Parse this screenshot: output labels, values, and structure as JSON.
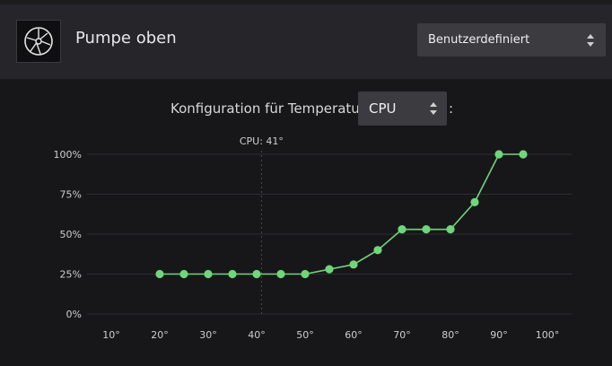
{
  "header": {
    "title": "Pumpe oben",
    "icon": "fan-icon",
    "mode_select": "Benutzerdefiniert"
  },
  "config": {
    "label": "Konfiguration für Temperatur",
    "sensor_select": "CPU",
    "colon": ":"
  },
  "chart_data": {
    "type": "line",
    "title": "",
    "xlabel": "",
    "ylabel": "",
    "x_ticks": [
      "10°",
      "20°",
      "30°",
      "40°",
      "50°",
      "60°",
      "70°",
      "80°",
      "90°",
      "100°"
    ],
    "y_ticks": [
      "0%",
      "25%",
      "50%",
      "75%",
      "100%"
    ],
    "xlim": [
      5,
      105
    ],
    "ylim": [
      0,
      100
    ],
    "grid": true,
    "series": [
      {
        "x": [
          20,
          25,
          30,
          35,
          40,
          45,
          50,
          55,
          60,
          65,
          70,
          75,
          80,
          85,
          90,
          95
        ],
        "y": [
          25,
          25,
          25,
          25,
          25,
          25,
          25,
          28,
          31,
          40,
          53,
          53,
          53,
          70,
          100,
          100
        ],
        "color": "#6fd67a"
      }
    ],
    "marker": {
      "label": "CPU: 41°",
      "x": 41
    }
  },
  "colors": {
    "accent": "#6fd67a",
    "header_bg": "#26262a",
    "body_bg": "#17171a",
    "control_bg": "#3b3b40"
  }
}
